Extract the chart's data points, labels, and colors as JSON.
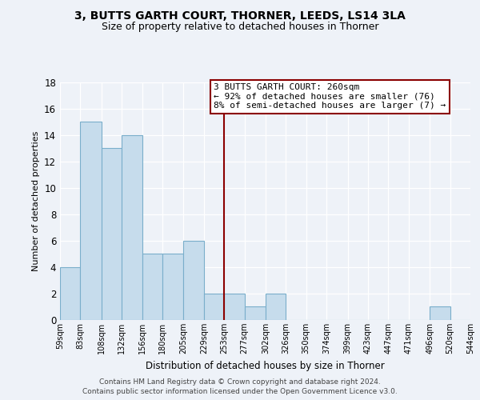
{
  "title": "3, BUTTS GARTH COURT, THORNER, LEEDS, LS14 3LA",
  "subtitle": "Size of property relative to detached houses in Thorner",
  "xlabel": "Distribution of detached houses by size in Thorner",
  "ylabel": "Number of detached properties",
  "bin_edges": [
    59,
    83,
    108,
    132,
    156,
    180,
    205,
    229,
    253,
    277,
    302,
    326,
    350,
    374,
    399,
    423,
    447,
    471,
    496,
    520,
    544
  ],
  "bin_labels": [
    "59sqm",
    "83sqm",
    "108sqm",
    "132sqm",
    "156sqm",
    "180sqm",
    "205sqm",
    "229sqm",
    "253sqm",
    "277sqm",
    "302sqm",
    "326sqm",
    "350sqm",
    "374sqm",
    "399sqm",
    "423sqm",
    "447sqm",
    "471sqm",
    "496sqm",
    "520sqm",
    "544sqm"
  ],
  "counts": [
    4,
    15,
    13,
    14,
    5,
    5,
    6,
    2,
    2,
    1,
    2,
    0,
    0,
    0,
    0,
    0,
    0,
    0,
    1,
    0
  ],
  "bar_color": "#c6dcec",
  "bar_edge_color": "#7aaecb",
  "property_line_x": 253,
  "property_line_color": "#8b0000",
  "annotation_line1": "3 BUTTS GARTH COURT: 260sqm",
  "annotation_line2": "← 92% of detached houses are smaller (76)",
  "annotation_line3": "8% of semi-detached houses are larger (7) →",
  "annotation_box_color": "#ffffff",
  "annotation_box_edge_color": "#8b0000",
  "ylim": [
    0,
    18
  ],
  "yticks": [
    0,
    2,
    4,
    6,
    8,
    10,
    12,
    14,
    16,
    18
  ],
  "background_color": "#eef2f8",
  "grid_color": "#ffffff",
  "footer_line1": "Contains HM Land Registry data © Crown copyright and database right 2024.",
  "footer_line2": "Contains public sector information licensed under the Open Government Licence v3.0."
}
